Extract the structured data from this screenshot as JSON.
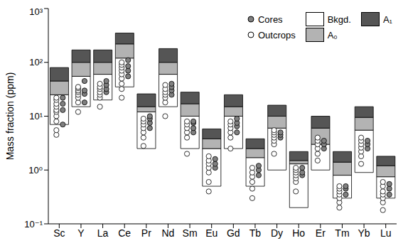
{
  "chart_data": {
    "type": "bar",
    "y_label": "Mass fraction (ppm)",
    "categories": [
      "Sc",
      "Y",
      "La",
      "Ce",
      "Pr",
      "Nd",
      "Sm",
      "Eu",
      "Gd",
      "Tb",
      "Dy",
      "Ho",
      "Er",
      "Tm",
      "Yb",
      "Lu"
    ],
    "log": "y",
    "ylim": [
      0.1,
      1000
    ],
    "yticks": [
      {
        "value": 0.1,
        "label": "10⁻¹"
      },
      {
        "value": 1,
        "label": "10⁰"
      },
      {
        "value": 10,
        "label": "10¹"
      },
      {
        "value": 100,
        "label": "10²"
      },
      {
        "value": 1000,
        "label": "10³"
      }
    ],
    "legend": "top right",
    "series": [
      {
        "name": "Cores",
        "type": "scatter",
        "marker": "circle",
        "color": "#808080",
        "values": [
          [
            7,
            13,
            17,
            22
          ],
          [
            18,
            26,
            30,
            45
          ],
          [
            28,
            32,
            38,
            45
          ],
          [
            55,
            70,
            85,
            110
          ],
          [
            6,
            7.5,
            9,
            10
          ],
          [
            25,
            30,
            35,
            40
          ],
          [
            5,
            6,
            7.5,
            8
          ],
          [
            1.1,
            1.3,
            1.6
          ],
          [
            5,
            6.5,
            7.5,
            9
          ],
          [
            0.8,
            1.0,
            1.2
          ],
          [
            4,
            4.5,
            5
          ],
          [
            0.8,
            0.9,
            1.1
          ],
          [
            2.5,
            3,
            3.5
          ],
          [
            0.35,
            0.45,
            0.5
          ],
          [
            2.5,
            3,
            3.5
          ],
          [
            0.35,
            0.45,
            0.55
          ]
        ]
      },
      {
        "name": "Outcrops",
        "type": "scatter",
        "marker": "circle",
        "color": "#ffffff",
        "values": [
          [
            4.5,
            5.5,
            8,
            10,
            12,
            13,
            15,
            17,
            20,
            22
          ],
          [
            12,
            18,
            22,
            25,
            28,
            30,
            33,
            35
          ],
          [
            15,
            22,
            25,
            28,
            32,
            35,
            40
          ],
          [
            22,
            32,
            40,
            50,
            60,
            70,
            80,
            90,
            100
          ],
          [
            2.8,
            4,
            5,
            6,
            7,
            8,
            9
          ],
          [
            10,
            18,
            22,
            25,
            28,
            32,
            38
          ],
          [
            2,
            4,
            5,
            6,
            7,
            8
          ],
          [
            0.4,
            0.6,
            0.9,
            1.1,
            1.3,
            1.5,
            1.8
          ],
          [
            2.5,
            4,
            5,
            6,
            7,
            8
          ],
          [
            0.3,
            0.45,
            0.6,
            0.75,
            0.9,
            1.1
          ],
          [
            2,
            3,
            3.5,
            4,
            4.5,
            5,
            5.5
          ],
          [
            0.4,
            0.6,
            0.7,
            0.8,
            0.9,
            1.0,
            1.1
          ],
          [
            1.5,
            2,
            2.5,
            3,
            3.5,
            4
          ],
          [
            0.2,
            0.25,
            0.3,
            0.35,
            0.4,
            0.45,
            0.5
          ],
          [
            1.3,
            1.8,
            2.2,
            2.6,
            3,
            3.5,
            4
          ],
          [
            0.18,
            0.25,
            0.3,
            0.35,
            0.4,
            0.5,
            0.6
          ]
        ]
      },
      {
        "name": "Bkgd.",
        "type": "range_bar",
        "color": "#ffffff",
        "values": [
          [
            7,
            25
          ],
          [
            15,
            55
          ],
          [
            20,
            60
          ],
          [
            35,
            120
          ],
          [
            2.5,
            12
          ],
          [
            15,
            60
          ],
          [
            2.5,
            10
          ],
          [
            0.5,
            2.5
          ],
          [
            2.5,
            10
          ],
          [
            0.5,
            1.7
          ],
          [
            1,
            6
          ],
          [
            0.2,
            1.3
          ],
          [
            1,
            3
          ],
          [
            0.3,
            0.8
          ],
          [
            0.9,
            5.5
          ],
          [
            0.3,
            0.75
          ]
        ]
      },
      {
        "name": "A₀",
        "type": "range_bar",
        "color": "#b3b3b3",
        "values": [
          [
            25,
            45
          ],
          [
            55,
            100
          ],
          [
            60,
            100
          ],
          [
            120,
            220
          ],
          [
            12,
            15
          ],
          [
            60,
            100
          ],
          [
            10,
            17
          ],
          [
            2.5,
            3.8
          ],
          [
            10,
            15
          ],
          [
            1.7,
            2.5
          ],
          [
            6,
            10
          ],
          [
            1.3,
            1.5
          ],
          [
            3,
            6
          ],
          [
            0.8,
            1.4
          ],
          [
            5.5,
            9.5
          ],
          [
            0.75,
            1.2
          ]
        ]
      },
      {
        "name": "A₁",
        "type": "range_bar",
        "color": "#555555",
        "values": [
          [
            45,
            80
          ],
          [
            100,
            170
          ],
          [
            100,
            170
          ],
          [
            220,
            350
          ],
          [
            15,
            26
          ],
          [
            100,
            180
          ],
          [
            17,
            28
          ],
          [
            3.8,
            5.8
          ],
          [
            15,
            25
          ],
          [
            2.5,
            3.8
          ],
          [
            10,
            16
          ],
          [
            1.5,
            2.2
          ],
          [
            6,
            10
          ],
          [
            1.4,
            2.2
          ],
          [
            9.5,
            15
          ],
          [
            1.2,
            1.8
          ]
        ]
      }
    ]
  }
}
